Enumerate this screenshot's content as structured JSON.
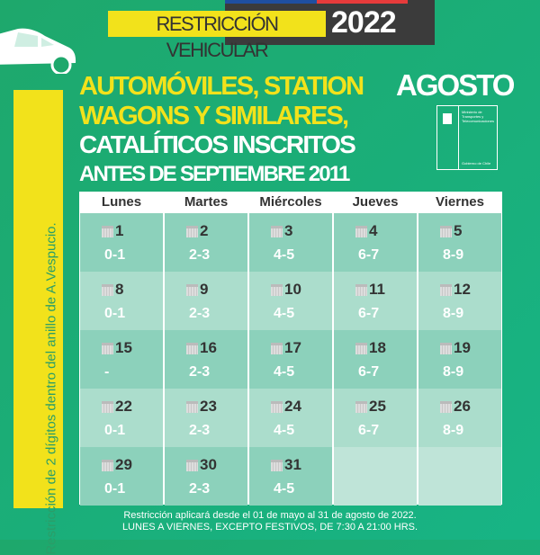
{
  "header": {
    "label": "RESTRICCIÓN VEHICULAR",
    "year": "2022",
    "flag_colors": [
      "#1f4fa0",
      "#e63b3b"
    ]
  },
  "title": {
    "line1": "AUTOMÓVILES, STATION",
    "line2": "WAGONS Y SIMILARES,",
    "line3": "CATALÍTICOS INSCRITOS",
    "line4": "ANTES DE SEPTIEMBRE 2011"
  },
  "month": "AGOSTO",
  "logo": {
    "ministry": "Ministerio de Transportes y Telecomunicaciones",
    "government": "Gobierno de Chile"
  },
  "side_note": "Restricción de 2 dígitos dentro del anillo de A.Vespucio.",
  "days": [
    "Lunes",
    "Martes",
    "Miércoles",
    "Jueves",
    "Viernes"
  ],
  "weeks": [
    [
      {
        "d": "1",
        "r": "0-1"
      },
      {
        "d": "2",
        "r": "2-3"
      },
      {
        "d": "3",
        "r": "4-5"
      },
      {
        "d": "4",
        "r": "6-7"
      },
      {
        "d": "5",
        "r": "8-9"
      }
    ],
    [
      {
        "d": "8",
        "r": "0-1"
      },
      {
        "d": "9",
        "r": "2-3"
      },
      {
        "d": "10",
        "r": "4-5"
      },
      {
        "d": "11",
        "r": "6-7"
      },
      {
        "d": "12",
        "r": "8-9"
      }
    ],
    [
      {
        "d": "15",
        "r": "-"
      },
      {
        "d": "16",
        "r": "2-3"
      },
      {
        "d": "17",
        "r": "4-5"
      },
      {
        "d": "18",
        "r": "6-7"
      },
      {
        "d": "19",
        "r": "8-9"
      }
    ],
    [
      {
        "d": "22",
        "r": "0-1"
      },
      {
        "d": "23",
        "r": "2-3"
      },
      {
        "d": "24",
        "r": "4-5"
      },
      {
        "d": "25",
        "r": "6-7"
      },
      {
        "d": "26",
        "r": "8-9"
      }
    ],
    [
      {
        "d": "29",
        "r": "0-1"
      },
      {
        "d": "30",
        "r": "2-3"
      },
      {
        "d": "31",
        "r": "4-5"
      },
      null,
      null
    ]
  ],
  "footer": {
    "line1": "Restricción aplicará desde el 01 de mayo al 31 de agosto de 2022.",
    "line2": "LUNES A VIERNES, EXCEPTO FESTIVOS, DE 7:30 A 21:00 HRS."
  }
}
